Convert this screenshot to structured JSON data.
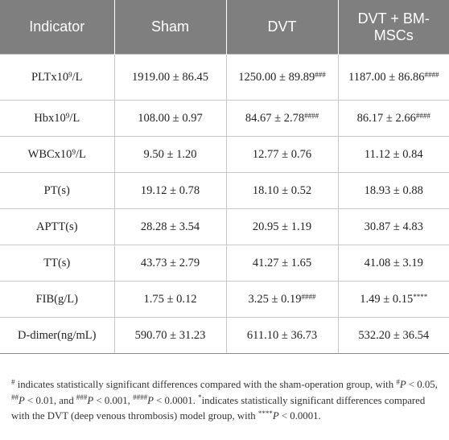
{
  "table": {
    "headers": [
      "Indicator",
      "Sham",
      "DVT",
      "DVT + BM-MSCs"
    ],
    "rows": [
      {
        "indicator": {
          "base": "PLTx10",
          "sup": "9",
          "tail": "/L"
        },
        "sham": {
          "text": "1919.00 ± 86.45",
          "sig": ""
        },
        "dvt": {
          "text": "1250.00 ± 89.89",
          "sig": "###"
        },
        "bm": {
          "text": "1187.00 ± 86.86",
          "sig": "####"
        }
      },
      {
        "indicator": {
          "base": "Hbx10",
          "sup": "9",
          "tail": "/L"
        },
        "sham": {
          "text": "108.00 ± 0.97",
          "sig": ""
        },
        "dvt": {
          "text": "84.67 ± 2.78",
          "sig": "####"
        },
        "bm": {
          "text": "86.17 ± 2.66",
          "sig": "####"
        }
      },
      {
        "indicator": {
          "base": "WBCx10",
          "sup": "9",
          "tail": "/L"
        },
        "sham": {
          "text": "9.50 ± 1.20",
          "sig": ""
        },
        "dvt": {
          "text": "12.77 ± 0.76",
          "sig": ""
        },
        "bm": {
          "text": "11.12 ± 0.84",
          "sig": ""
        }
      },
      {
        "indicator": {
          "base": "PT(s)",
          "sup": "",
          "tail": ""
        },
        "sham": {
          "text": "19.12 ± 0.78",
          "sig": ""
        },
        "dvt": {
          "text": "18.10 ± 0.52",
          "sig": ""
        },
        "bm": {
          "text": "18.93 ± 0.88",
          "sig": ""
        }
      },
      {
        "indicator": {
          "base": "APTT(s)",
          "sup": "",
          "tail": ""
        },
        "sham": {
          "text": "28.28 ± 3.54",
          "sig": ""
        },
        "dvt": {
          "text": "20.95 ± 1.19",
          "sig": ""
        },
        "bm": {
          "text": "30.87 ± 4.83",
          "sig": ""
        }
      },
      {
        "indicator": {
          "base": "TT(s)",
          "sup": "",
          "tail": ""
        },
        "sham": {
          "text": "43.73 ± 2.79",
          "sig": ""
        },
        "dvt": {
          "text": "41.27 ± 1.65",
          "sig": ""
        },
        "bm": {
          "text": "41.08 ± 3.19",
          "sig": ""
        }
      },
      {
        "indicator": {
          "base": "FIB(g/L)",
          "sup": "",
          "tail": ""
        },
        "sham": {
          "text": "1.75 ± 0.12",
          "sig": ""
        },
        "dvt": {
          "text": "3.25 ± 0.19",
          "sig": "####"
        },
        "bm": {
          "text": "1.49 ± 0.15",
          "sig": "****"
        }
      },
      {
        "indicator": {
          "base": "D-dimer(ng/mL)",
          "sup": "",
          "tail": ""
        },
        "sham": {
          "text": "590.70 ± 31.23",
          "sig": ""
        },
        "dvt": {
          "text": "611.10 ± 36.73",
          "sig": ""
        },
        "bm": {
          "text": "532.20 ± 36.54",
          "sig": ""
        }
      }
    ]
  },
  "footnote": {
    "hash": "#",
    "line1": " indicates statistically significant differences compared with the sham-operation group, with ",
    "p1_mark": "#",
    "p1_text": " < 0.05, ",
    "p2_mark": "##",
    "p2_text": " < 0.01, and ",
    "p3_mark": "###",
    "p3_text": " < 0.001, ",
    "p4_mark": "####",
    "p4_text": " < 0.0001. ",
    "star": "*",
    "line2": "indicates statistically significant differences compared with the DVT (deep venous thrombosis) model group, with ",
    "p5_mark": "****",
    "p5_text": " < 0.0001.",
    "p_letter": "P"
  }
}
